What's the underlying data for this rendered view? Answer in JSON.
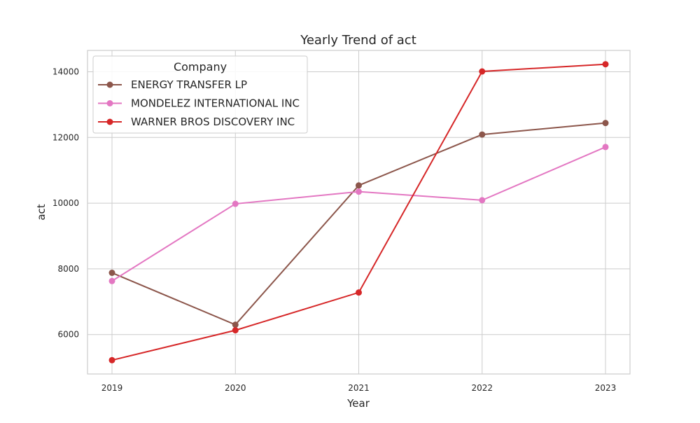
{
  "chart_data": {
    "type": "line",
    "title": "Yearly Trend of act",
    "xlabel": "Year",
    "ylabel": "act",
    "x": [
      "2019",
      "2020",
      "2021",
      "2022",
      "2023"
    ],
    "yticks": [
      "6000",
      "8000",
      "10000",
      "12000",
      "14000"
    ],
    "ylim": [
      4800,
      14650
    ],
    "grid": true,
    "legend": {
      "title": "Company",
      "placement": "top-left"
    },
    "series": [
      {
        "name": "ENERGY TRANSFER LP",
        "color": "#8c564b",
        "values": [
          7880,
          6300,
          10540,
          12090,
          12440
        ]
      },
      {
        "name": "MONDELEZ INTERNATIONAL INC",
        "color": "#e377c2",
        "values": [
          7630,
          9980,
          10350,
          10090,
          11710
        ]
      },
      {
        "name": "WARNER BROS DISCOVERY INC",
        "color": "#d62728",
        "values": [
          5220,
          6130,
          7280,
          14010,
          14230
        ]
      }
    ]
  }
}
